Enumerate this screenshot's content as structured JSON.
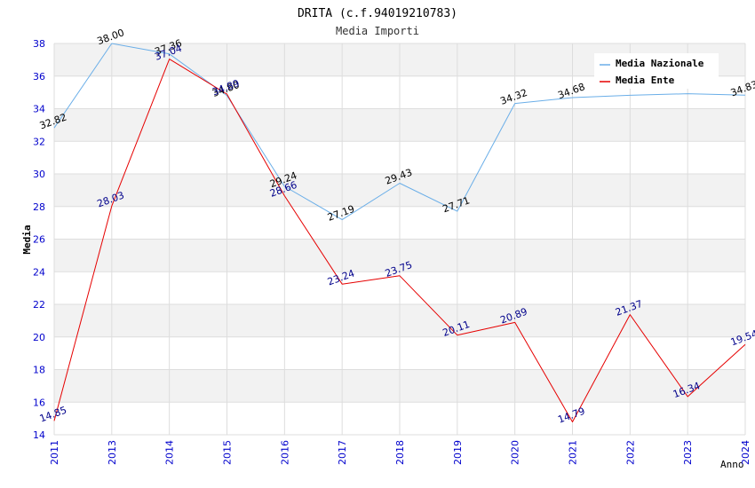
{
  "chart_data": {
    "type": "line",
    "title": "DRITA (c.f.94019210783)",
    "subtitle": "Media Importi",
    "xlabel": "Anno",
    "ylabel": "Media",
    "ylim": [
      14,
      38
    ],
    "ytick_step": 2,
    "grid": true,
    "legend_position": "top-right",
    "categories": [
      "2011",
      "2013",
      "2014",
      "2015",
      "2016",
      "2017",
      "2018",
      "2019",
      "2020",
      "2021",
      "2022",
      "2023",
      "2024"
    ],
    "series": [
      {
        "name": "Media Nazionale",
        "color": "#6aaee8",
        "label_color": "#000000",
        "values": [
          32.82,
          38.0,
          37.36,
          34.8,
          29.24,
          27.19,
          29.43,
          27.71,
          34.32,
          34.68,
          34.82,
          34.92,
          34.83
        ],
        "labels": [
          "32.82",
          "38.00",
          "37.36",
          "34.80",
          "29.24",
          "27.19",
          "29.43",
          "27.71",
          "34.32",
          "34.68",
          "",
          "",
          "34.83"
        ]
      },
      {
        "name": "Media Ente",
        "color": "#e60000",
        "label_color": "#00008b",
        "values": [
          14.85,
          28.03,
          37.04,
          34.89,
          28.66,
          23.24,
          23.75,
          20.11,
          20.89,
          14.79,
          21.37,
          16.34,
          19.54
        ],
        "labels": [
          "14.85",
          "28.03",
          "37.04",
          "34.89",
          "28.66",
          "23.24",
          "23.75",
          "20.11",
          "20.89",
          "14.79",
          "21.37",
          "16.34",
          "19.54"
        ]
      }
    ]
  }
}
